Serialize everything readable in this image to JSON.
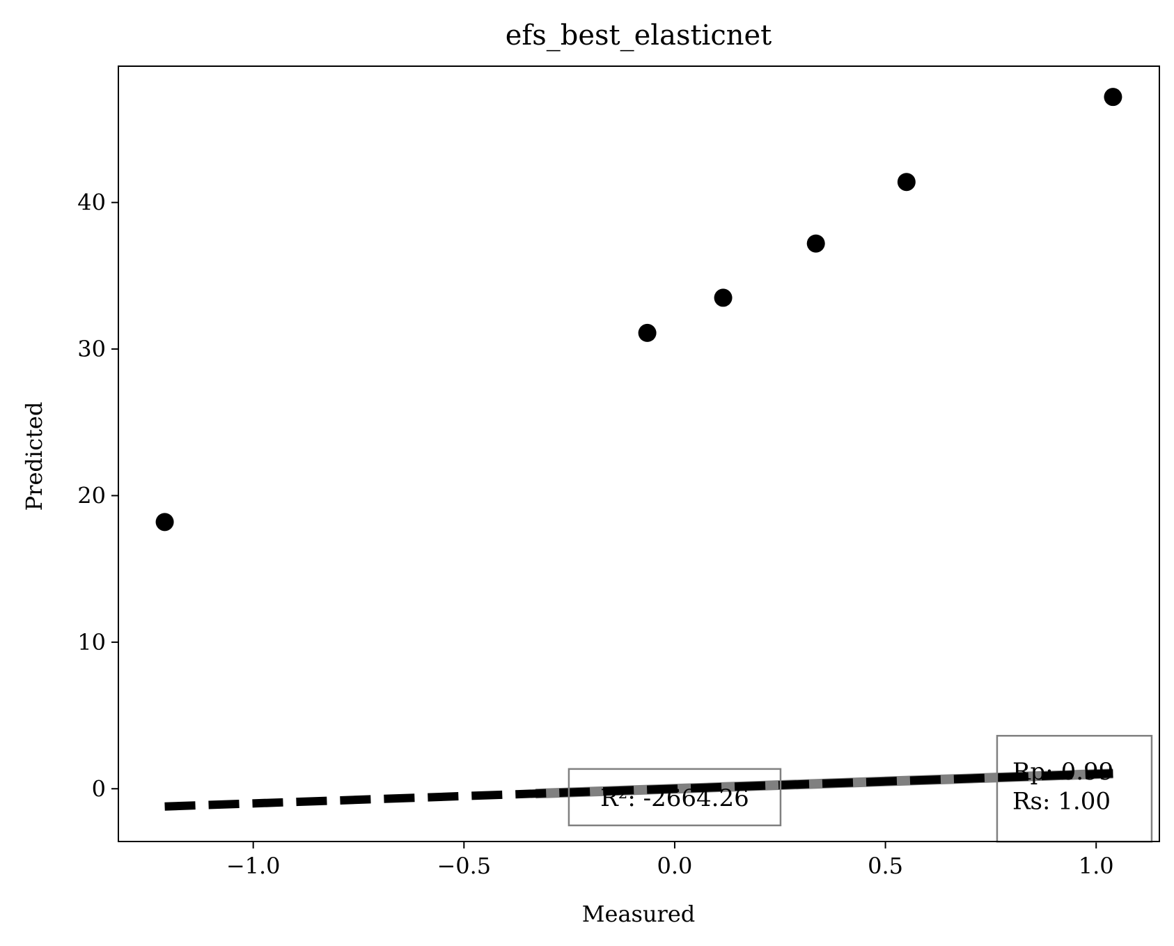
{
  "chart_data": {
    "type": "scatter",
    "title": "efs_best_elasticnet",
    "xlabel": "Measured",
    "ylabel": "Predicted",
    "xlim": [
      -1.32,
      1.15
    ],
    "ylim": [
      -3.6,
      49.3
    ],
    "x_ticks": [
      -1.0,
      -0.5,
      0.0,
      0.5,
      1.0
    ],
    "x_tick_labels": [
      "−1.0",
      "−0.5",
      "0.0",
      "0.5",
      "1.0"
    ],
    "y_ticks": [
      0,
      10,
      20,
      30,
      40
    ],
    "y_tick_labels": [
      "0",
      "10",
      "20",
      "30",
      "40"
    ],
    "grid": false,
    "series": [
      {
        "marker": "circle",
        "color": "#000000",
        "points": [
          {
            "x": -1.21,
            "y": 18.2
          },
          {
            "x": -0.065,
            "y": 31.1
          },
          {
            "x": 0.115,
            "y": 33.5
          },
          {
            "x": 0.335,
            "y": 37.2
          },
          {
            "x": 0.55,
            "y": 41.4
          },
          {
            "x": 1.04,
            "y": 47.2
          }
        ]
      }
    ],
    "reference_line": {
      "style": "dashed",
      "color": "#000000",
      "x": [
        -1.21,
        1.04
      ],
      "y": [
        -1.21,
        1.04
      ]
    },
    "fit_line": {
      "style": "solid",
      "color": "#808080",
      "x": [
        -0.33,
        1.04
      ],
      "y": [
        -0.33,
        1.04
      ]
    },
    "annotations": [
      {
        "id": "r2",
        "text": "R²: -2664.26",
        "color": "#0000ff",
        "anchor_x": 0.0,
        "anchor_y": -0.6
      },
      {
        "id": "rp",
        "text": "Rp: 0.99",
        "color": "#000000",
        "anchor_x": 0.95,
        "anchor_y": 1.0
      },
      {
        "id": "rs",
        "text": "Rs: 1.00",
        "color": "#000000",
        "anchor_x": 0.95,
        "anchor_y": -1.0
      }
    ]
  }
}
